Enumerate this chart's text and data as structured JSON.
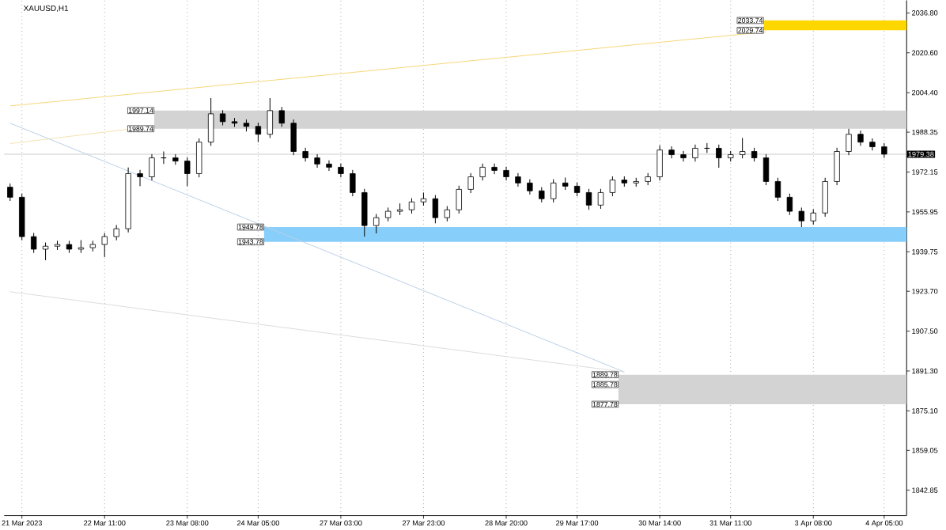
{
  "chart_data": {
    "type": "candlestick",
    "title": "XAUUSD,H1",
    "categories": [
      null,
      "21 Mar 2023",
      null,
      null,
      null,
      null,
      null,
      null,
      "22 Mar 11:00",
      null,
      null,
      null,
      null,
      null,
      null,
      "23 Mar 08:00",
      null,
      null,
      null,
      null,
      null,
      "24 Mar 05:00",
      null,
      null,
      null,
      null,
      null,
      null,
      "27 Mar 03:00",
      null,
      null,
      null,
      null,
      null,
      null,
      "27 Mar 23:00",
      null,
      null,
      null,
      null,
      null,
      null,
      "28 Mar 20:00",
      null,
      null,
      null,
      null,
      null,
      "29 Mar 17:00",
      null,
      null,
      null,
      null,
      null,
      null,
      "30 Mar 14:00",
      null,
      null,
      null,
      null,
      null,
      "31 Mar 11:00",
      null,
      null,
      null,
      null,
      null,
      null,
      "3 Apr 08:00",
      null,
      null,
      null,
      null,
      null,
      "4 Apr 05:00"
    ],
    "ohlc": [
      [
        1966.0,
        1967.5,
        1960.4,
        1961.9
      ],
      [
        1961.9,
        1963.4,
        1944.4,
        1945.9
      ],
      [
        1945.9,
        1947.4,
        1939.3,
        1940.8
      ],
      [
        1940.8,
        1943.5,
        1936.3,
        1942.0
      ],
      [
        1942.0,
        1944.2,
        1940.5,
        1942.7
      ],
      [
        1942.7,
        1944.2,
        1939.3,
        1940.8
      ],
      [
        1940.8,
        1944.5,
        1939.3,
        1941.4
      ],
      [
        1941.4,
        1944.2,
        1939.9,
        1942.7
      ],
      [
        1942.7,
        1947.4,
        1937.6,
        1945.9
      ],
      [
        1945.9,
        1950.6,
        1944.4,
        1949.1
      ],
      [
        1949.1,
        1974.0,
        1947.6,
        1971.5
      ],
      [
        1971.5,
        1973.0,
        1966.4,
        1970.2
      ],
      [
        1970.2,
        1979.4,
        1968.7,
        1977.9
      ],
      [
        1977.9,
        1980.5,
        1975.4,
        1977.9
      ],
      [
        1977.9,
        1979.4,
        1975.1,
        1976.6
      ],
      [
        1976.6,
        1978.1,
        1966.4,
        1971.5
      ],
      [
        1971.5,
        1985.8,
        1970.0,
        1984.3
      ],
      [
        1984.3,
        2002.2,
        1982.8,
        1995.8
      ],
      [
        1995.8,
        1997.3,
        1991.1,
        1992.6
      ],
      [
        1992.6,
        1994.1,
        1990.5,
        1992.0
      ],
      [
        1992.0,
        1993.5,
        1988.6,
        1990.7
      ],
      [
        1990.7,
        1992.2,
        1984.3,
        1987.5
      ],
      [
        1987.5,
        2002.2,
        1986.0,
        1997.1
      ],
      [
        1997.1,
        1998.6,
        1990.5,
        1992.0
      ],
      [
        1992.0,
        1993.5,
        1979.0,
        1980.5
      ],
      [
        1980.5,
        1982.0,
        1976.4,
        1977.9
      ],
      [
        1977.9,
        1979.4,
        1973.9,
        1975.4
      ],
      [
        1975.4,
        1976.9,
        1972.6,
        1974.1
      ],
      [
        1974.1,
        1975.6,
        1970.0,
        1971.5
      ],
      [
        1971.5,
        1973.0,
        1962.3,
        1963.8
      ],
      [
        1963.8,
        1965.3,
        1945.9,
        1950.4
      ],
      [
        1950.4,
        1955.1,
        1947.2,
        1953.6
      ],
      [
        1953.6,
        1957.7,
        1952.1,
        1956.2
      ],
      [
        1956.2,
        1959.4,
        1954.7,
        1956.8
      ],
      [
        1956.8,
        1961.5,
        1955.3,
        1960.0
      ],
      [
        1960.0,
        1963.8,
        1958.5,
        1961.3
      ],
      [
        1961.3,
        1962.8,
        1951.3,
        1953.6
      ],
      [
        1953.6,
        1958.3,
        1952.1,
        1956.8
      ],
      [
        1956.8,
        1966.6,
        1955.3,
        1965.1
      ],
      [
        1965.1,
        1971.7,
        1963.6,
        1970.2
      ],
      [
        1970.2,
        1975.6,
        1968.7,
        1974.1
      ],
      [
        1974.1,
        1975.6,
        1971.3,
        1972.8
      ],
      [
        1972.8,
        1974.3,
        1968.7,
        1970.2
      ],
      [
        1970.2,
        1971.7,
        1966.2,
        1967.7
      ],
      [
        1967.7,
        1969.2,
        1963.0,
        1964.5
      ],
      [
        1964.5,
        1966.0,
        1959.8,
        1961.3
      ],
      [
        1961.3,
        1969.2,
        1959.8,
        1967.7
      ],
      [
        1967.7,
        1969.9,
        1964.9,
        1966.4
      ],
      [
        1966.4,
        1967.9,
        1962.3,
        1963.8
      ],
      [
        1963.8,
        1965.3,
        1956.8,
        1958.7
      ],
      [
        1958.7,
        1965.3,
        1957.2,
        1963.8
      ],
      [
        1963.8,
        1970.4,
        1962.3,
        1968.9
      ],
      [
        1968.9,
        1970.4,
        1966.2,
        1967.7
      ],
      [
        1967.7,
        1969.8,
        1966.2,
        1968.3
      ],
      [
        1968.3,
        1971.7,
        1966.8,
        1970.2
      ],
      [
        1970.2,
        1983.0,
        1968.7,
        1981.1
      ],
      [
        1981.1,
        1982.6,
        1977.7,
        1979.2
      ],
      [
        1979.2,
        1980.7,
        1976.4,
        1977.9
      ],
      [
        1977.9,
        1983.3,
        1976.4,
        1981.8
      ],
      [
        1981.8,
        1983.9,
        1979.9,
        1981.8
      ],
      [
        1981.8,
        1983.3,
        1973.9,
        1977.9
      ],
      [
        1977.9,
        1980.7,
        1976.4,
        1979.2
      ],
      [
        1979.2,
        1986.0,
        1977.7,
        1980.5
      ],
      [
        1980.5,
        1982.0,
        1976.4,
        1977.9
      ],
      [
        1977.9,
        1979.4,
        1966.8,
        1968.3
      ],
      [
        1968.3,
        1969.8,
        1960.4,
        1961.9
      ],
      [
        1961.9,
        1963.4,
        1954.7,
        1956.2
      ],
      [
        1956.2,
        1957.7,
        1949.8,
        1952.3
      ],
      [
        1952.3,
        1957.0,
        1950.8,
        1955.5
      ],
      [
        1955.5,
        1969.8,
        1954.0,
        1968.3
      ],
      [
        1968.3,
        1982.0,
        1966.8,
        1980.5
      ],
      [
        1980.5,
        1989.7,
        1979.0,
        1987.5
      ],
      [
        1987.5,
        1989.0,
        1982.8,
        1984.3
      ],
      [
        1984.3,
        1985.8,
        1980.9,
        1982.4
      ],
      [
        1982.4,
        1983.9,
        1977.9,
        1979.4
      ]
    ],
    "series": [
      {
        "type": "line",
        "color": "#f7d77a",
        "values": [
          1999.0,
          null,
          null,
          null,
          null,
          null,
          null,
          null,
          null,
          null,
          null,
          null,
          null,
          null,
          null,
          null,
          null,
          null,
          null,
          null,
          null,
          null,
          null,
          null,
          null,
          null,
          null,
          null,
          null,
          null,
          null,
          null,
          null,
          null,
          null,
          null,
          null,
          null,
          null,
          null,
          null,
          null,
          null,
          null,
          null,
          null,
          null,
          null,
          null,
          null,
          null,
          null,
          null,
          null,
          null,
          null,
          null,
          null,
          null,
          null,
          null,
          null,
          null,
          null,
          2029.1,
          null,
          null,
          null,
          null,
          null,
          null,
          null,
          null,
          null,
          null
        ]
      },
      {
        "type": "line",
        "color": "#f3e3b0",
        "values": [
          1983.7,
          null,
          null,
          null,
          null,
          null,
          null,
          null,
          null,
          null,
          null,
          null,
          1990.7,
          null,
          null,
          null,
          null,
          null,
          null,
          null,
          null,
          null,
          null,
          null,
          null,
          null,
          null,
          null,
          null,
          null,
          null,
          null,
          null,
          null,
          null,
          null,
          null,
          null,
          null,
          null,
          null,
          null,
          null,
          null,
          null,
          null,
          null,
          null,
          null,
          null,
          null,
          null,
          null,
          null,
          null,
          null,
          null,
          null,
          null,
          null,
          null,
          null,
          null,
          null,
          null,
          null,
          null,
          null,
          null,
          null,
          null,
          null,
          null,
          null,
          null
        ]
      },
      {
        "type": "line",
        "color": "#b9d0e8",
        "values": [
          1992.0,
          null,
          null,
          null,
          null,
          null,
          null,
          null,
          null,
          null,
          null,
          null,
          null,
          null,
          null,
          null,
          null,
          null,
          null,
          null,
          null,
          null,
          null,
          null,
          null,
          null,
          null,
          null,
          null,
          null,
          null,
          null,
          null,
          null,
          null,
          null,
          null,
          null,
          null,
          null,
          null,
          null,
          null,
          null,
          null,
          null,
          null,
          null,
          null,
          null,
          null,
          null,
          1890.9,
          null,
          null,
          null,
          null,
          null,
          null,
          null,
          null,
          null,
          null,
          null,
          null,
          null,
          null,
          null,
          null,
          null,
          null,
          null,
          null,
          null,
          null
        ]
      },
      {
        "type": "line",
        "color": "#dcdcdc",
        "values": [
          1923.5,
          null,
          null,
          null,
          null,
          null,
          null,
          null,
          null,
          null,
          null,
          null,
          null,
          null,
          null,
          null,
          null,
          null,
          null,
          null,
          null,
          null,
          null,
          null,
          null,
          null,
          null,
          null,
          null,
          null,
          null,
          null,
          null,
          null,
          null,
          null,
          null,
          null,
          null,
          null,
          null,
          null,
          null,
          null,
          null,
          null,
          null,
          null,
          null,
          null,
          null,
          null,
          1890.9,
          null,
          null,
          null,
          null,
          null,
          null,
          null,
          null,
          null,
          null,
          null,
          null,
          null,
          null,
          null,
          null,
          null,
          null,
          null,
          null,
          null,
          null
        ]
      }
    ],
    "ylim": [
      1832.6,
      2041.9
    ],
    "yticks": [
      {
        "value": 2036.8,
        "label": "2036.80"
      },
      {
        "value": 2020.6,
        "label": "2020.60"
      },
      {
        "value": 2004.4,
        "label": "2004.40"
      },
      {
        "value": 1988.35,
        "label": "1988.35"
      },
      {
        "value": 1972.15,
        "label": "1972.15"
      },
      {
        "value": 1955.95,
        "label": "1955.95"
      },
      {
        "value": 1939.75,
        "label": "1939.75"
      },
      {
        "value": 1923.7,
        "label": "1923.70"
      },
      {
        "value": 1907.5,
        "label": "1907.50"
      },
      {
        "value": 1891.3,
        "label": "1891.30"
      },
      {
        "value": 1875.1,
        "label": "1875.10"
      },
      {
        "value": 1859.05,
        "label": "1859.05"
      },
      {
        "value": 1842.85,
        "label": "1842.85"
      }
    ],
    "grid": "x",
    "bands": [
      {
        "axis": "y",
        "from": 2029.74,
        "to": 2033.74,
        "color": "#ffd700"
      },
      {
        "axis": "y",
        "from": 1989.74,
        "to": 1997.14,
        "color": "#d3d3d3"
      },
      {
        "axis": "y",
        "from": 1943.78,
        "to": 1949.78,
        "color": "#87cefa"
      },
      {
        "axis": "y",
        "from": 1877.78,
        "to": 1889.78,
        "color": "#d3d3d3"
      }
    ],
    "ref_lines": [
      {
        "axis": "y",
        "value": 1979.38,
        "label": "1979.38",
        "color": "#c0c0c0"
      }
    ],
    "annotations": [
      "2033.74",
      "2029.74",
      "1997.14",
      "1989.74",
      "1949.78",
      "1943.78",
      "1889.78",
      "1885.78",
      "1877.78"
    ]
  }
}
